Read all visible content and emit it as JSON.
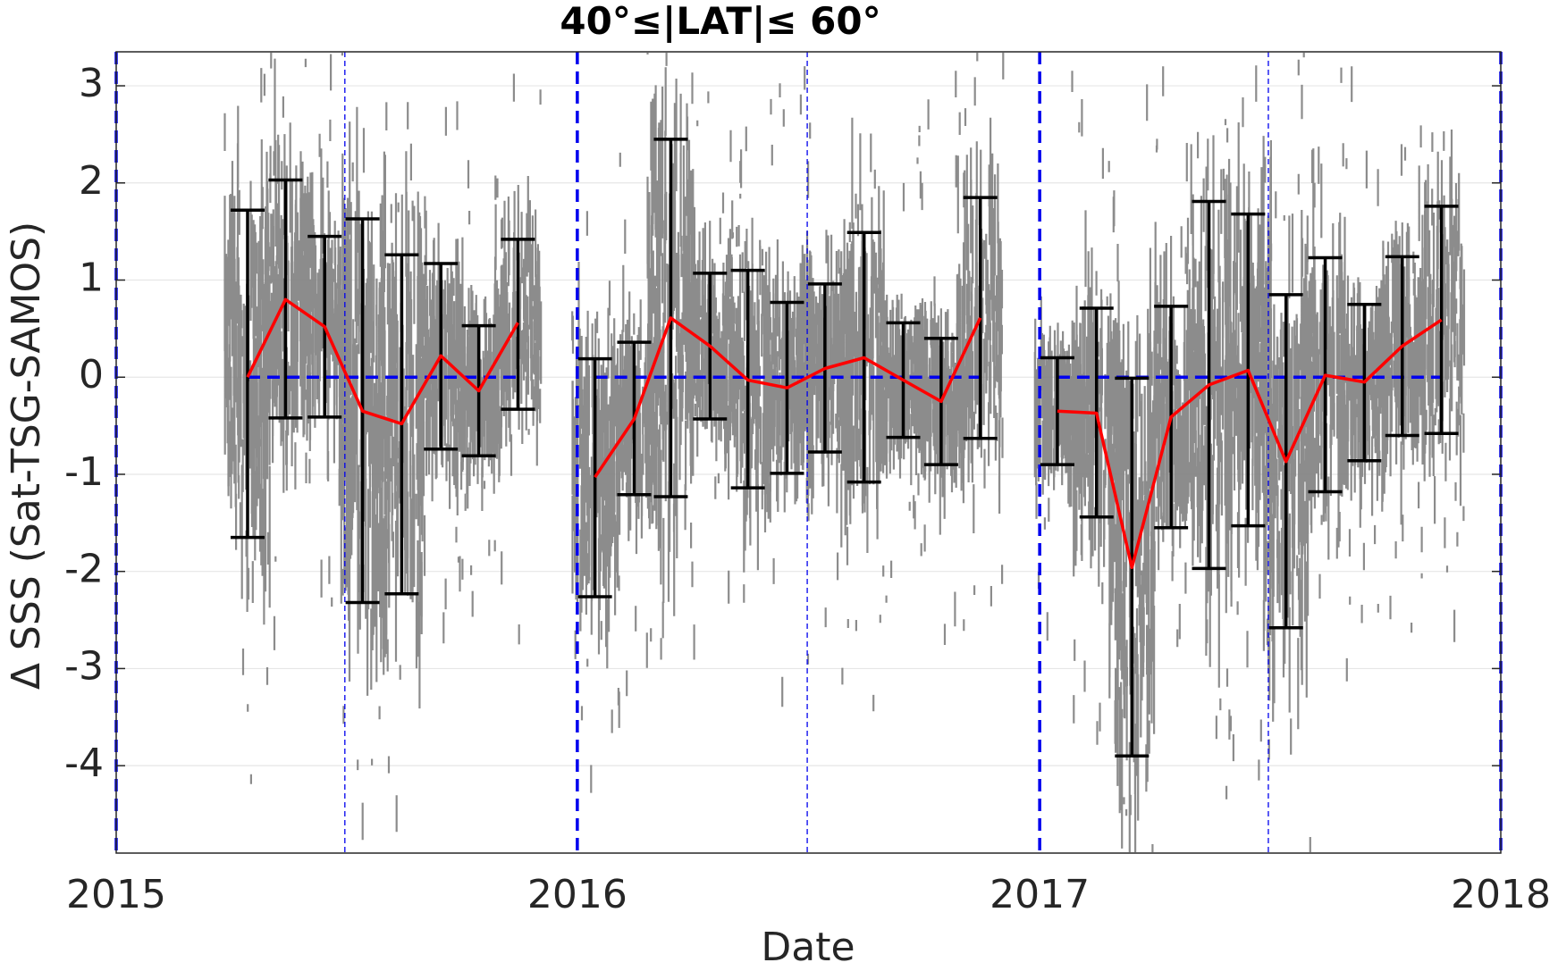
{
  "chart_data": {
    "type": "line",
    "title": "40°≤|LAT|≤ 60°",
    "xlabel": "Date",
    "ylabel": "Δ SSS (Sat-TSG-SAMOS)",
    "x_ticks": [
      "2015",
      "2016",
      "2017",
      "2018"
    ],
    "y_ticks": [
      "3",
      "2",
      "1",
      "0",
      "-1",
      "-2",
      "-3",
      "-4"
    ],
    "xlim": [
      "2015-01-01",
      "2018-01-01"
    ],
    "ylim": [
      -4.9,
      3.35
    ],
    "grid": "horizontal",
    "reference_line_y": 0,
    "year_boundaries": [
      "2015-01-01",
      "2016-01-01",
      "2017-01-01",
      "2018-01-01"
    ],
    "mid_year_lines": [
      "2015-07-01",
      "2016-07-01",
      "2017-07-01"
    ],
    "series": [
      {
        "kind": "monthly_mean_with_error_bars",
        "color": "#ff0000",
        "errorbar_color": "#000000",
        "points": [
          {
            "x": "2015-04-15",
            "mean": 0.0,
            "lower": -1.65,
            "upper": 1.72
          },
          {
            "x": "2015-05-15",
            "mean": 0.8,
            "lower": -0.42,
            "upper": 2.03
          },
          {
            "x": "2015-06-15",
            "mean": 0.52,
            "lower": -0.41,
            "upper": 1.45
          },
          {
            "x": "2015-07-15",
            "mean": -0.35,
            "lower": -2.32,
            "upper": 1.63
          },
          {
            "x": "2015-08-15",
            "mean": -0.48,
            "lower": -2.23,
            "upper": 1.26
          },
          {
            "x": "2015-09-15",
            "mean": 0.22,
            "lower": -0.74,
            "upper": 1.17
          },
          {
            "x": "2015-10-15",
            "mean": -0.14,
            "lower": -0.81,
            "upper": 0.53
          },
          {
            "x": "2015-11-15",
            "mean": 0.56,
            "lower": -0.33,
            "upper": 1.42
          },
          {
            "x": "2016-01-15",
            "mean": -1.03,
            "lower": -2.26,
            "upper": 0.19
          },
          {
            "x": "2016-02-15",
            "mean": -0.43,
            "lower": -1.21,
            "upper": 0.36
          },
          {
            "x": "2016-03-15",
            "mean": 0.61,
            "lower": -1.23,
            "upper": 2.45
          },
          {
            "x": "2016-04-15",
            "mean": 0.32,
            "lower": -0.43,
            "upper": 1.07
          },
          {
            "x": "2016-05-15",
            "mean": -0.03,
            "lower": -1.14,
            "upper": 1.1
          },
          {
            "x": "2016-06-15",
            "mean": -0.11,
            "lower": -0.99,
            "upper": 0.77
          },
          {
            "x": "2016-07-15",
            "mean": 0.09,
            "lower": -0.77,
            "upper": 0.96
          },
          {
            "x": "2016-08-15",
            "mean": 0.2,
            "lower": -1.08,
            "upper": 1.49
          },
          {
            "x": "2016-09-15",
            "mean": -0.03,
            "lower": -0.62,
            "upper": 0.56
          },
          {
            "x": "2016-10-15",
            "mean": -0.25,
            "lower": -0.9,
            "upper": 0.4
          },
          {
            "x": "2016-11-15",
            "mean": 0.61,
            "lower": -0.63,
            "upper": 1.85
          },
          {
            "x": "2017-01-15",
            "mean": -0.35,
            "lower": -0.9,
            "upper": 0.2
          },
          {
            "x": "2017-02-15",
            "mean": -0.37,
            "lower": -1.44,
            "upper": 0.71
          },
          {
            "x": "2017-03-15",
            "mean": -1.96,
            "lower": -3.9,
            "upper": -0.01
          },
          {
            "x": "2017-04-15",
            "mean": -0.41,
            "lower": -1.55,
            "upper": 0.73
          },
          {
            "x": "2017-05-15",
            "mean": -0.08,
            "lower": -1.97,
            "upper": 1.81
          },
          {
            "x": "2017-06-15",
            "mean": 0.07,
            "lower": -1.53,
            "upper": 1.68
          },
          {
            "x": "2017-07-15",
            "mean": -0.87,
            "lower": -2.58,
            "upper": 0.85
          },
          {
            "x": "2017-08-15",
            "mean": 0.02,
            "lower": -1.18,
            "upper": 1.23
          },
          {
            "x": "2017-09-15",
            "mean": -0.05,
            "lower": -0.86,
            "upper": 0.75
          },
          {
            "x": "2017-10-15",
            "mean": 0.32,
            "lower": -0.6,
            "upper": 1.24
          },
          {
            "x": "2017-11-15",
            "mean": 0.59,
            "lower": -0.58,
            "upper": 1.76
          }
        ]
      },
      {
        "kind": "scatter_individual_differences",
        "color": "#808080",
        "note": "dense cloud of individual satellite minus TSG-SAMOS salinity differences"
      }
    ]
  }
}
